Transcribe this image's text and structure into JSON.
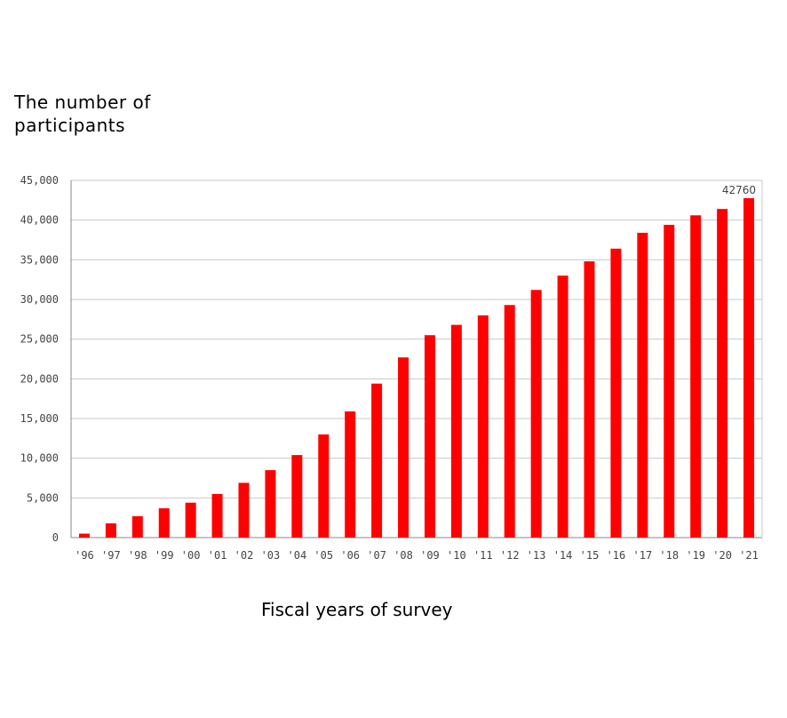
{
  "chart_data": {
    "type": "bar",
    "ylabel": [
      "The number of",
      "participants"
    ],
    "xlabel": "Fiscal years of survey",
    "categories": [
      "'96",
      "'97",
      "'98",
      "'99",
      "'00",
      "'01",
      "'02",
      "'03",
      "'04",
      "'05",
      "'06",
      "'07",
      "'08",
      "'09",
      "'10",
      "'11",
      "'12",
      "'13",
      "'14",
      "'15",
      "'16",
      "'17",
      "'18",
      "'19",
      "'20",
      "'21"
    ],
    "values": [
      500,
      1800,
      2700,
      3700,
      4400,
      5500,
      6900,
      8500,
      10400,
      13000,
      15900,
      19400,
      22700,
      25500,
      26800,
      28000,
      29300,
      31200,
      33000,
      34800,
      36400,
      38400,
      39400,
      40600,
      41400,
      42760
    ],
    "yticks": [
      "0",
      "5,000",
      "10,000",
      "15,000",
      "20,000",
      "25,000",
      "30,000",
      "35,000",
      "40,000",
      "45,000"
    ],
    "ylim": [
      0,
      45000
    ],
    "grid": true,
    "data_labels": [
      {
        "index": 25,
        "text": "42760"
      }
    ],
    "colors": {
      "bar": "#ff0000",
      "grid": "#c8c8c8",
      "axis": "#888888"
    }
  }
}
